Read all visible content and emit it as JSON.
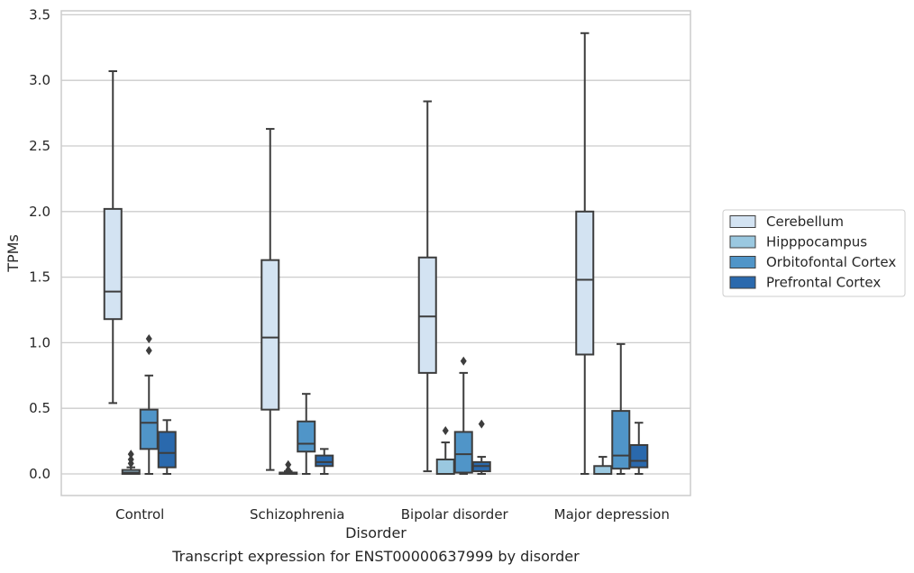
{
  "chart_data": {
    "type": "box",
    "caption": "Transcript expression for ENST00000637999 by disorder",
    "xlabel": "Disorder",
    "ylabel": "TPMs",
    "ylim": [
      -0.16,
      3.55
    ],
    "yticks": [
      "0.0",
      "0.5",
      "1.0",
      "1.5",
      "2.0",
      "2.5",
      "3.0",
      "3.5"
    ],
    "grid": "horizontal",
    "legend_position": "right",
    "categories": [
      "Control",
      "Schizophrenia",
      "Bipolar disorder",
      "Major depression"
    ],
    "series": [
      {
        "name": "Cerebellum",
        "color": "#d3e3f2",
        "boxes": [
          {
            "whislo": 0.54,
            "q1": 1.18,
            "med": 1.39,
            "q3": 2.02,
            "whishi": 3.07,
            "fliers": []
          },
          {
            "whislo": 0.03,
            "q1": 0.49,
            "med": 1.04,
            "q3": 1.63,
            "whishi": 2.63,
            "fliers": []
          },
          {
            "whislo": 0.02,
            "q1": 0.77,
            "med": 1.2,
            "q3": 1.65,
            "whishi": 2.84,
            "fliers": []
          },
          {
            "whislo": 0.0,
            "q1": 0.91,
            "med": 1.48,
            "q3": 2.0,
            "whishi": 3.36,
            "fliers": []
          }
        ]
      },
      {
        "name": "Hipppocampus",
        "color": "#9ac8e0",
        "boxes": [
          {
            "whislo": 0.0,
            "q1": 0.0,
            "med": 0.01,
            "q3": 0.03,
            "whishi": 0.05,
            "fliers": [
              0.08,
              0.11,
              0.15
            ]
          },
          {
            "whislo": 0.0,
            "q1": 0.0,
            "med": 0.01,
            "q3": 0.01,
            "whishi": 0.02,
            "fliers": [
              0.03,
              0.07
            ]
          },
          {
            "whislo": 0.0,
            "q1": 0.0,
            "med": 0.0,
            "q3": 0.11,
            "whishi": 0.24,
            "fliers": [
              0.33
            ]
          },
          {
            "whislo": 0.0,
            "q1": 0.0,
            "med": 0.0,
            "q3": 0.06,
            "whishi": 0.13,
            "fliers": []
          }
        ]
      },
      {
        "name": "Orbitofontal Cortex",
        "color": "#5095c8",
        "boxes": [
          {
            "whislo": 0.0,
            "q1": 0.19,
            "med": 0.39,
            "q3": 0.49,
            "whishi": 0.75,
            "fliers": [
              0.94,
              1.03
            ]
          },
          {
            "whislo": 0.0,
            "q1": 0.17,
            "med": 0.23,
            "q3": 0.4,
            "whishi": 0.61,
            "fliers": []
          },
          {
            "whislo": 0.0,
            "q1": 0.01,
            "med": 0.15,
            "q3": 0.32,
            "whishi": 0.77,
            "fliers": [
              0.86
            ]
          },
          {
            "whislo": 0.0,
            "q1": 0.04,
            "med": 0.14,
            "q3": 0.48,
            "whishi": 0.99,
            "fliers": []
          }
        ]
      },
      {
        "name": "Prefrontal Cortex",
        "color": "#2a69ad",
        "boxes": [
          {
            "whislo": 0.0,
            "q1": 0.05,
            "med": 0.16,
            "q3": 0.32,
            "whishi": 0.41,
            "fliers": []
          },
          {
            "whislo": 0.0,
            "q1": 0.06,
            "med": 0.09,
            "q3": 0.14,
            "whishi": 0.19,
            "fliers": []
          },
          {
            "whislo": 0.0,
            "q1": 0.02,
            "med": 0.06,
            "q3": 0.09,
            "whishi": 0.13,
            "fliers": [
              0.38
            ]
          },
          {
            "whislo": 0.0,
            "q1": 0.05,
            "med": 0.1,
            "q3": 0.22,
            "whishi": 0.39,
            "fliers": []
          }
        ]
      }
    ]
  }
}
